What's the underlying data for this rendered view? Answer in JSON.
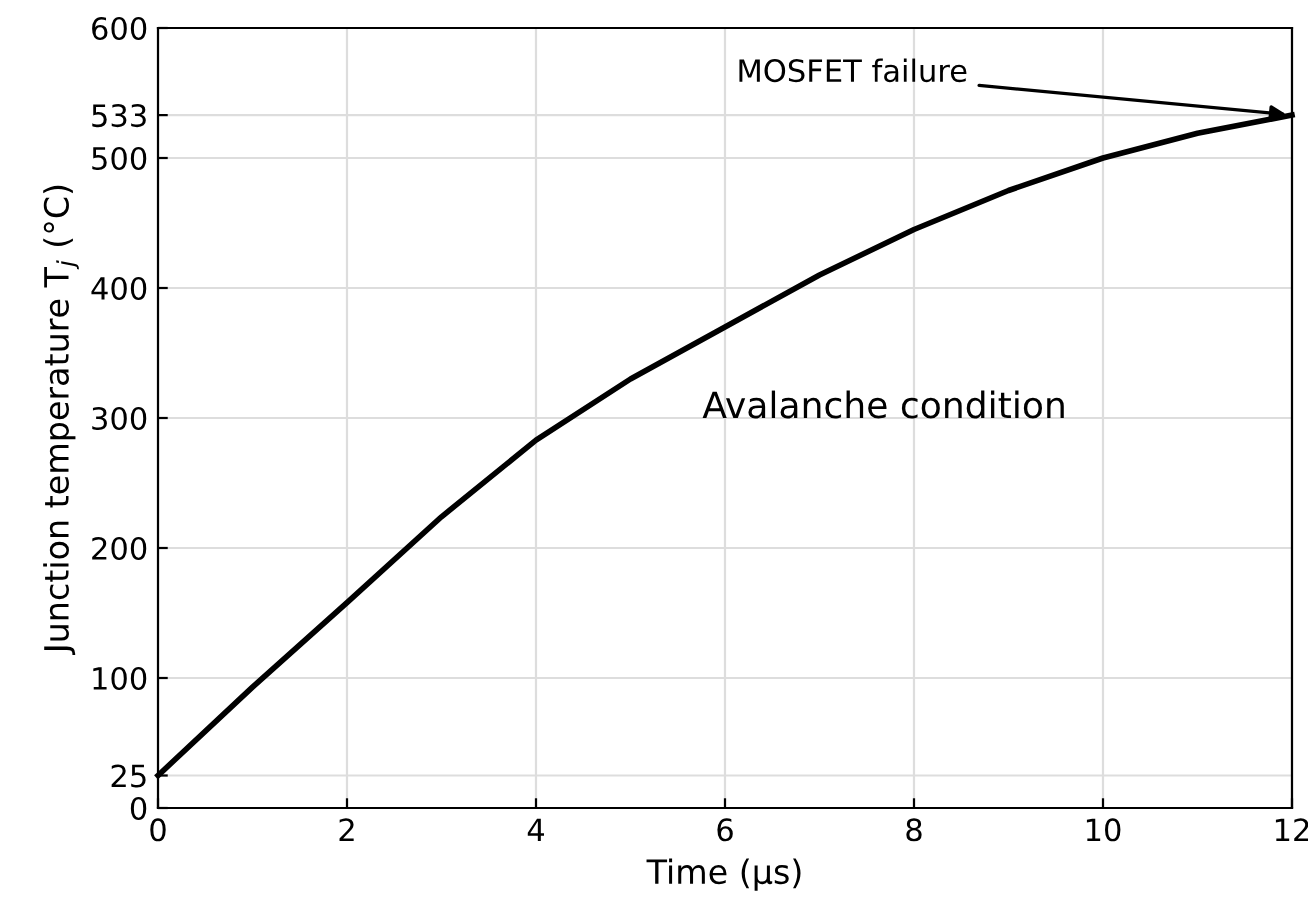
{
  "chart_data": {
    "type": "line",
    "xlabel": "Time (μs)",
    "ylabel": "Junction temperature T$_{j}$ (°C)",
    "x": [
      0,
      1,
      2,
      3,
      4,
      5,
      6,
      7,
      8,
      9,
      10,
      11,
      12
    ],
    "series": [
      {
        "color": "#000000",
        "values": [
          25,
          93,
          158,
          224,
          283,
          330,
          370,
          410,
          445,
          475,
          500,
          519,
          533
        ]
      }
    ],
    "xlim": [
      0,
      12
    ],
    "xticks": [
      0,
      2,
      4,
      6,
      8,
      10,
      12
    ],
    "ylim": [
      0,
      600
    ],
    "yticks": [
      0,
      25,
      100,
      200,
      300,
      400,
      500,
      533,
      600
    ],
    "grid": true,
    "line_style": "solid",
    "annotations": [
      {
        "text": "MOSFET failure",
        "x": 12,
        "y": 533
      },
      "Avalanche condition"
    ]
  }
}
